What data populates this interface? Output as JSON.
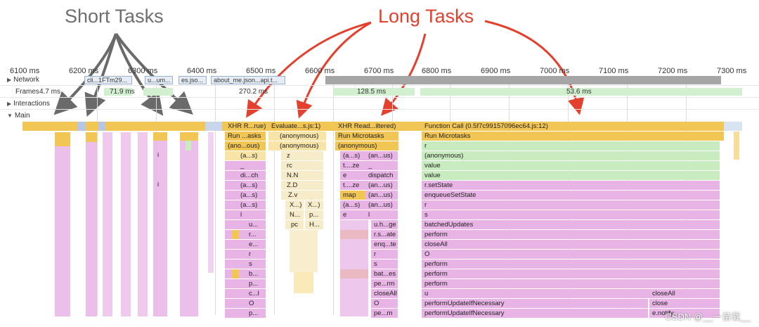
{
  "annotations": {
    "short_tasks": "Short Tasks",
    "long_tasks": "Long Tasks"
  },
  "ruler": {
    "ticks": [
      "6100 ms",
      "6200 ms",
      "6300 ms",
      "6400 ms",
      "6500 ms",
      "6600 ms",
      "6700 ms",
      "6800 ms",
      "6900 ms",
      "7000 ms",
      "7100 ms",
      "7200 ms",
      "7300 ms"
    ]
  },
  "tracks": {
    "network": "Network",
    "frames": "Frames",
    "interactions": "Interactions",
    "main": "Main"
  },
  "network_requests": [
    "cli...1FTm29...",
    "u...um...",
    "es.jso...",
    "about_me.json...api.t..."
  ],
  "frames": [
    "4.7 ms",
    "71.9 ms",
    "270.2 ms",
    "128.5 ms",
    "53.6 ms"
  ],
  "flame": {
    "task1": [
      "XHR R...rue)",
      "Run ...asks",
      "(ano...ous)",
      "(a...s)",
      "_",
      "di...ch",
      "(a...s)",
      "(a...s)",
      "(a...s)",
      "l",
      "u...",
      "r...",
      "e...",
      "r",
      "s",
      "b...",
      "p...",
      "c...l",
      "O",
      "p..."
    ],
    "task2": [
      "Evaluate...s.js:1)",
      "(anonymous)",
      "(anonymous)",
      "z",
      "rc",
      "N.N",
      "Z.D",
      "Z.v",
      "X...)",
      "X...)",
      "N...",
      "p...",
      "pc",
      "H..."
    ],
    "task3": [
      "XHR Read...iltered)",
      "Run Microtasks",
      "(anonymous)",
      "(a...s)",
      "(an...us)",
      "t....ze",
      "_",
      "e",
      "dispatch",
      "t....ze",
      "(an...us)",
      "map",
      "(an...us)",
      "(a...s)",
      "(an...us)",
      "e",
      "l",
      "u.h...ge",
      "r.s...ate",
      "enq...te",
      "r",
      "s",
      "bat...es",
      "pe...rm",
      "closeAll",
      "O",
      "pe...m"
    ],
    "task4": [
      "Function Call (0.5f7c99157096ec64.js:12)",
      "Run Microtasks",
      "r",
      "(anonymous)",
      "value",
      "value",
      "r.setState",
      "enqueueSetState",
      "r",
      "s",
      "batchedUpdates",
      "perform",
      "closeAll",
      "O",
      "perform",
      "perform",
      "perform",
      "u",
      "performUpdateIfNecessary",
      "performUpdateIfNecessary",
      "closeAll",
      "close",
      "e.notify..."
    ],
    "short_i": [
      "i",
      "i"
    ]
  },
  "watermark": "CSDN @__一苗载__",
  "colors": {
    "scripting": "#f2c654",
    "rendering": "#e8b4e6",
    "painting": "#c9ebc0",
    "annotation_red": "#e3402e",
    "annotation_gray": "#6e6e6e"
  }
}
